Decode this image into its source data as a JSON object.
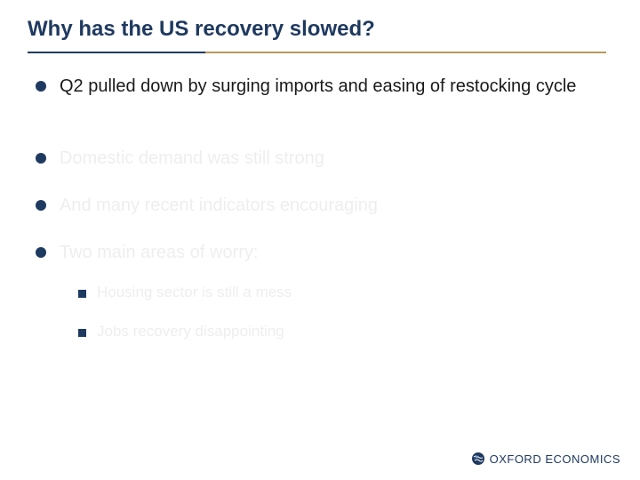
{
  "slide": {
    "title": "Why has the US recovery slowed?",
    "bullets": [
      {
        "text": "Q2 pulled down by surging imports and easing of restocking cycle"
      },
      {
        "text": "Domestic demand was still strong"
      },
      {
        "text": "And many recent indicators encouraging"
      },
      {
        "text": "Two main areas of worry:"
      }
    ],
    "sub_bullets": [
      {
        "text": "Housing sector is still a mess"
      },
      {
        "text": "Jobs recovery disappointing"
      }
    ]
  },
  "logo": {
    "text": "OXFORD ECONOMICS",
    "icon": "globe-icon"
  },
  "colors": {
    "title": "#1f3a60",
    "rule_dark": "#1f3a60",
    "rule_gold": "#b79a5a",
    "dim_text": "#eeeeee"
  }
}
